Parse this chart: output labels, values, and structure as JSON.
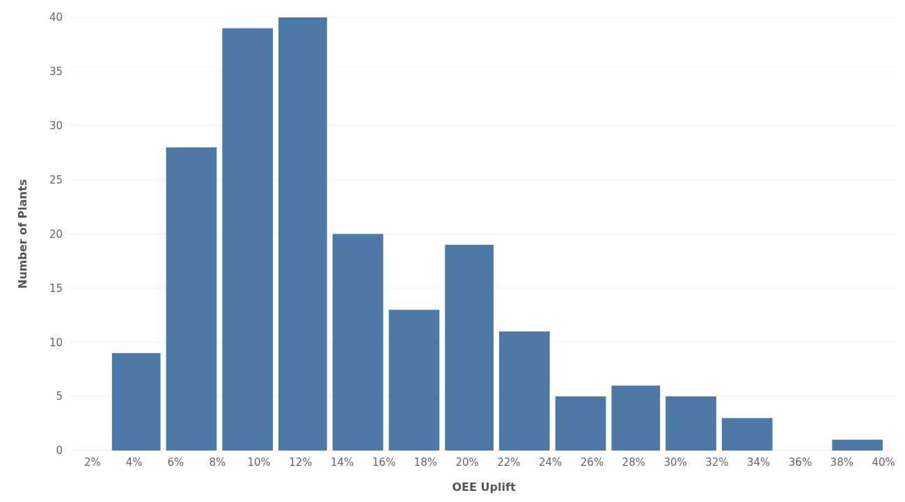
{
  "chart_data": {
    "type": "histogram",
    "xlabel": "OEE Uplift",
    "ylabel": "Number of Plants",
    "bins": [
      2.8,
      5.4,
      8.1,
      10.8,
      13.4,
      16.1,
      18.8,
      21.4,
      24.1,
      26.8,
      29.4,
      32.1,
      34.8,
      37.4,
      40.1
    ],
    "values": [
      9,
      28,
      39,
      40,
      20,
      13,
      19,
      11,
      5,
      6,
      5,
      3,
      0,
      1
    ],
    "color": "#4e79a7",
    "xlim": [
      0.9,
      40.7
    ],
    "xticks": [
      {
        "value": 2,
        "label": "2%"
      },
      {
        "value": 4,
        "label": "4%"
      },
      {
        "value": 6,
        "label": "6%"
      },
      {
        "value": 8,
        "label": "8%"
      },
      {
        "value": 10,
        "label": "10%"
      },
      {
        "value": 12,
        "label": "12%"
      },
      {
        "value": 14,
        "label": "14%"
      },
      {
        "value": 16,
        "label": "16%"
      },
      {
        "value": 18,
        "label": "18%"
      },
      {
        "value": 20,
        "label": "20%"
      },
      {
        "value": 22,
        "label": "22%"
      },
      {
        "value": 24,
        "label": "24%"
      },
      {
        "value": 26,
        "label": "26%"
      },
      {
        "value": 28,
        "label": "28%"
      },
      {
        "value": 30,
        "label": "30%"
      },
      {
        "value": 32,
        "label": "32%"
      },
      {
        "value": 34,
        "label": "34%"
      },
      {
        "value": 36,
        "label": "36%"
      },
      {
        "value": 38,
        "label": "38%"
      },
      {
        "value": 40,
        "label": "40%"
      }
    ],
    "ylim": [
      0,
      40
    ],
    "yticks": [
      0,
      5,
      10,
      15,
      20,
      25,
      30,
      35,
      40
    ],
    "grid": "y"
  }
}
